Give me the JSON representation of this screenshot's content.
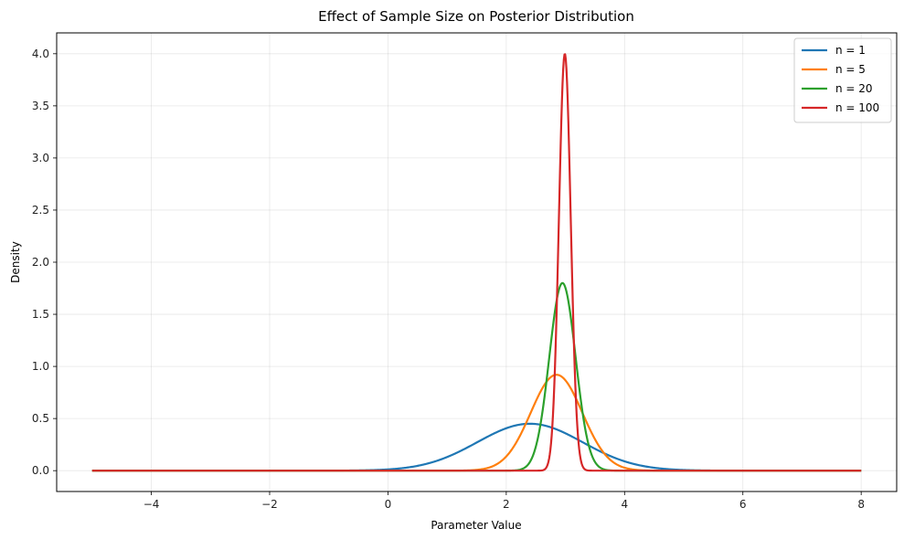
{
  "chart_data": {
    "type": "line",
    "title": "Effect of Sample Size on Posterior Distribution",
    "xlabel": "Parameter Value",
    "ylabel": "Density",
    "xlim": [
      -5.6,
      8.6
    ],
    "ylim": [
      -0.2,
      4.2
    ],
    "xticks": [
      -4,
      -2,
      0,
      2,
      4,
      6,
      8
    ],
    "yticks": [
      0.0,
      0.5,
      1.0,
      1.5,
      2.0,
      2.5,
      3.0,
      3.5,
      4.0
    ],
    "xtick_labels": [
      "−4",
      "−2",
      "0",
      "2",
      "4",
      "6",
      "8"
    ],
    "ytick_labels": [
      "0.0",
      "0.5",
      "1.0",
      "1.5",
      "2.0",
      "2.5",
      "3.0",
      "3.5",
      "4.0"
    ],
    "x_range": [
      -5,
      8
    ],
    "grid": true,
    "legend_position": "top-right",
    "series": [
      {
        "name": "n = 1",
        "color": "#1f77b4",
        "distribution": "normal",
        "mean": 2.4,
        "sd": 0.89,
        "peak": 0.45
      },
      {
        "name": "n = 5",
        "color": "#ff7f0e",
        "distribution": "normal",
        "mean": 2.85,
        "sd": 0.435,
        "peak": 0.92
      },
      {
        "name": "n = 20",
        "color": "#2ca02c",
        "distribution": "normal",
        "mean": 2.95,
        "sd": 0.222,
        "peak": 1.8
      },
      {
        "name": "n = 100",
        "color": "#d62728",
        "distribution": "normal",
        "mean": 2.99,
        "sd": 0.0998,
        "peak": 4.0
      }
    ]
  }
}
